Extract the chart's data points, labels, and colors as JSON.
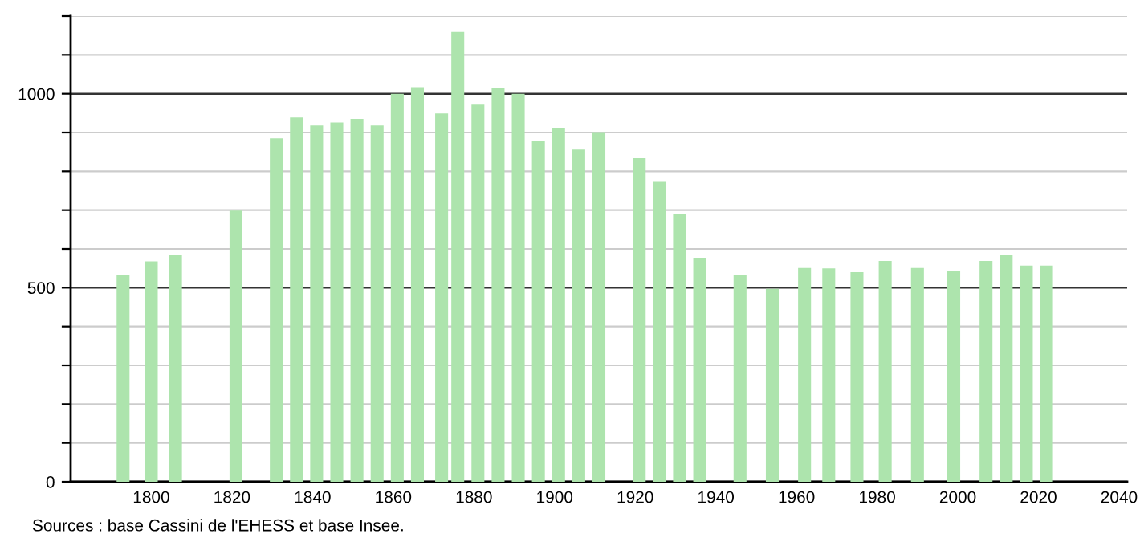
{
  "chart_data": {
    "type": "bar",
    "x": [
      1793,
      1800,
      1806,
      1821,
      1831,
      1836,
      1841,
      1846,
      1851,
      1856,
      1861,
      1866,
      1872,
      1876,
      1881,
      1886,
      1891,
      1896,
      1901,
      1906,
      1911,
      1921,
      1926,
      1931,
      1936,
      1946,
      1954,
      1962,
      1968,
      1975,
      1982,
      1990,
      1999,
      2007,
      2012,
      2017,
      2022
    ],
    "values": [
      533,
      568,
      584,
      699,
      885,
      939,
      918,
      926,
      935,
      918,
      1000,
      1017,
      949,
      1159,
      972,
      1015,
      1000,
      877,
      911,
      856,
      899,
      834,
      773,
      690,
      577,
      533,
      497,
      551,
      550,
      540,
      569,
      551,
      544,
      569,
      584,
      557,
      557
    ],
    "color": "#ade4ad",
    "xlim": [
      1780,
      2042
    ],
    "xticks": [
      1800,
      1820,
      1840,
      1860,
      1880,
      1900,
      1920,
      1940,
      1960,
      1980,
      2000,
      2020,
      2040
    ],
    "ylim": [
      0,
      1200
    ],
    "yticks": [
      0,
      {
        "value": 100,
        "label": null
      },
      {
        "value": 200,
        "label": null
      },
      {
        "value": 300,
        "label": null
      },
      {
        "value": 400,
        "label": null
      },
      500,
      {
        "value": 600,
        "label": null
      },
      {
        "value": 700,
        "label": null
      },
      {
        "value": 800,
        "label": null
      },
      {
        "value": 900,
        "label": null
      },
      1000,
      {
        "value": 1100,
        "label": null
      },
      {
        "value": 1200,
        "label": null
      }
    ],
    "grid": "y",
    "annotations": [
      "Sources : base Cassini de l'EHESS et base Insee."
    ]
  }
}
